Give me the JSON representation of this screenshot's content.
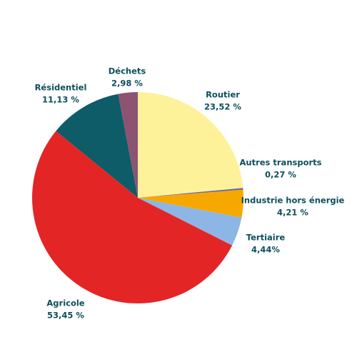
{
  "chart_data": {
    "type": "pie",
    "categories": [
      "Routier",
      "Autres transports",
      "Industrie hors énergie",
      "Tertiaire",
      "Agricole",
      "Résidentiel",
      "Déchets"
    ],
    "values": [
      23.52,
      0.27,
      4.21,
      4.44,
      53.45,
      11.13,
      2.98
    ],
    "value_labels": [
      "23,52 %",
      "0,27 %",
      "4,21 %",
      "4,44%",
      "53,45 %",
      "11,13 %",
      "2,98 %"
    ],
    "colors": [
      "#fdf29a",
      "#6d6b9e",
      "#f7a800",
      "#8db6e6",
      "#e32526",
      "#0d5c67",
      "#8c5372"
    ]
  }
}
